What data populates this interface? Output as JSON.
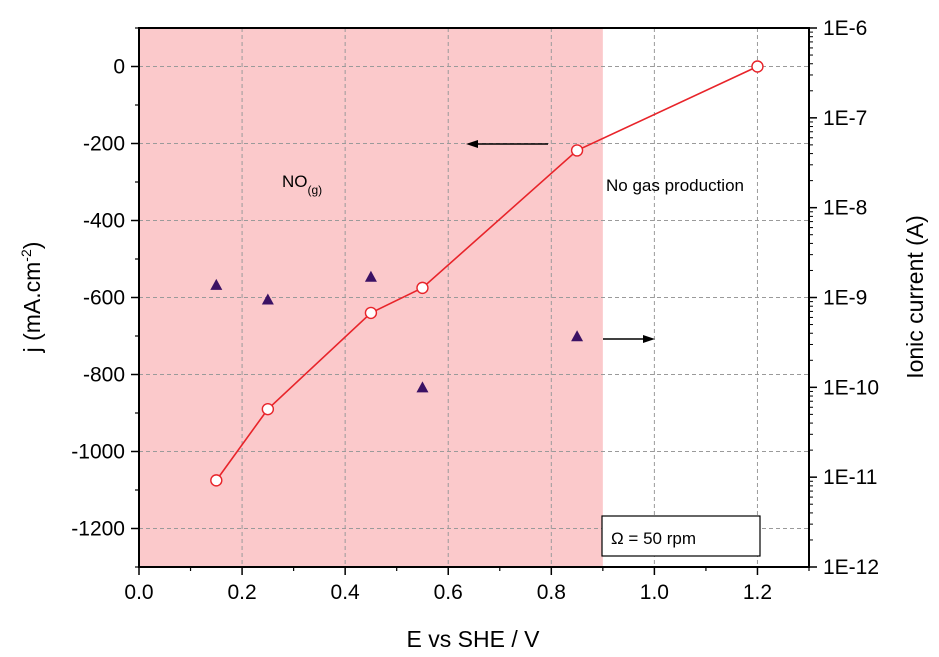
{
  "chart_data": {
    "type": "scatter",
    "xlabel": "E vs SHE / V",
    "ylabel": "j (mA.cm",
    "ylabel_sup": "-2",
    "ylabel_close": ")",
    "y2label": "Ionic current (A)",
    "xlim": [
      0.0,
      1.3
    ],
    "ylim": [
      -1300,
      100
    ],
    "y2scale": "log",
    "y2lim": [
      1e-12,
      1e-06
    ],
    "grid": true,
    "xticks": [
      "0.0",
      "0.2",
      "0.4",
      "0.6",
      "0.8",
      "1.0",
      "1.2"
    ],
    "xtick_values": [
      0,
      0.2,
      0.4,
      0.6,
      0.8,
      1.0,
      1.2
    ],
    "yticks": [
      "0",
      "-200",
      "-400",
      "-600",
      "-800",
      "-1000",
      "-1200"
    ],
    "ytick_values": [
      0,
      -200,
      -400,
      -600,
      -800,
      -1000,
      -1200
    ],
    "y2ticks": [
      "1E-6",
      "1E-7",
      "1E-8",
      "1E-9",
      "1E-10",
      "1E-11",
      "1E-12"
    ],
    "y2tick_values": [
      -6,
      -7,
      -8,
      -9,
      -10,
      -11,
      -12
    ],
    "series": [
      {
        "axis": "left",
        "style": "line-open-circle",
        "color": "#e8242a",
        "x": [
          0.15,
          0.25,
          0.45,
          0.55,
          0.85,
          1.2
        ],
        "y": [
          -1075,
          -890,
          -640,
          -575,
          -218,
          0
        ]
      },
      {
        "axis": "right",
        "style": "filled-triangle",
        "color": "#3b1164",
        "x": [
          0.15,
          0.25,
          0.45,
          0.55,
          0.85
        ],
        "y": [
          1.38e-09,
          9.5e-10,
          1.7e-09,
          1e-10,
          3.7e-10
        ]
      }
    ],
    "shaded_region": {
      "x": [
        0.0,
        0.9
      ],
      "color": "#fbc9cb"
    },
    "annotations": {
      "region_label_main": "NO",
      "region_label_sub": "(g)",
      "no_gas": "No gas production",
      "omega": "Ω = 50 rpm"
    }
  }
}
